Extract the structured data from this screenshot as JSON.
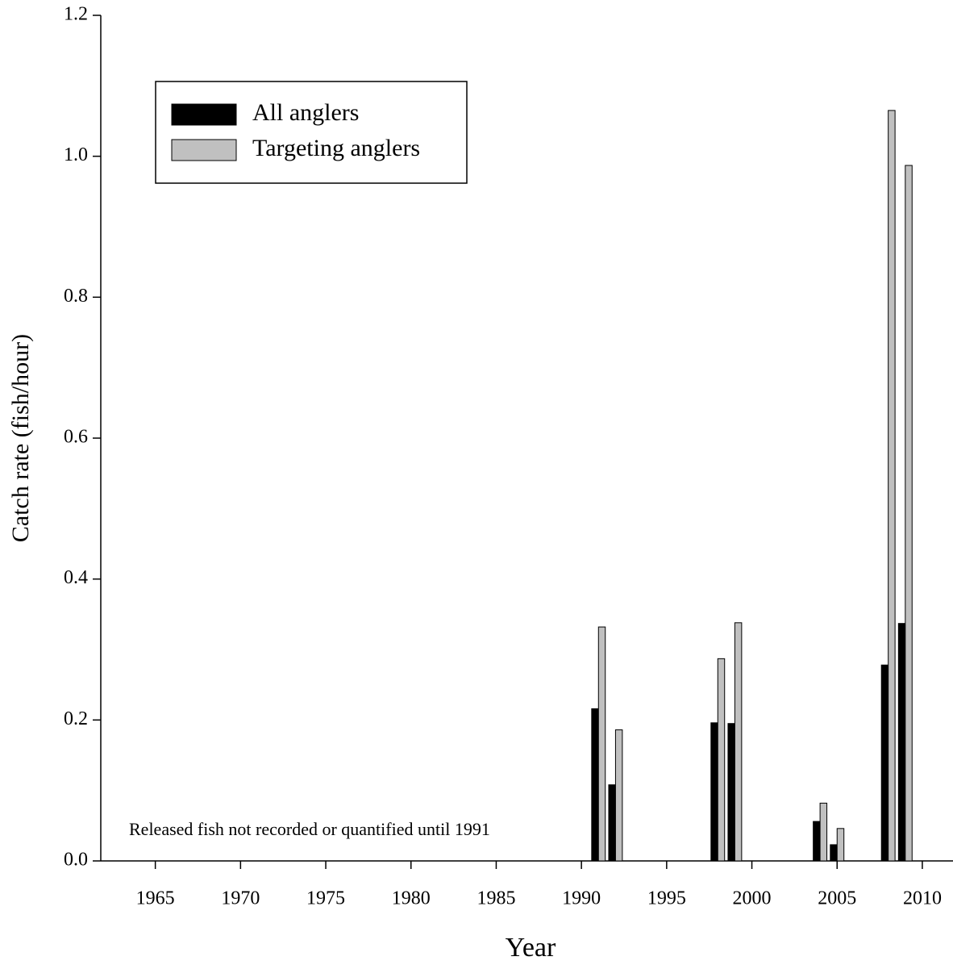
{
  "chart_data": {
    "type": "bar",
    "x_label": "Year",
    "y_label": "Catch rate (fish/hour)",
    "annotation": "Released fish not recorded or quantified until 1991",
    "x": [
      1991,
      1992,
      1998,
      1999,
      2004,
      2005,
      2008,
      2009
    ],
    "series": [
      {
        "name": "All anglers",
        "color": "#000000",
        "values": [
          0.216,
          0.108,
          0.196,
          0.195,
          0.056,
          0.023,
          0.278,
          0.337
        ]
      },
      {
        "name": "Targeting anglers",
        "color": "#c0c0c0",
        "values": [
          0.332,
          0.186,
          0.287,
          0.338,
          0.082,
          0.046,
          1.065,
          0.987
        ]
      }
    ],
    "xlim": [
      1961.8,
      2011.8
    ],
    "xticks": [
      1965,
      1970,
      1975,
      1980,
      1985,
      1990,
      1995,
      2000,
      2005,
      2010
    ],
    "ylim": [
      0,
      1.2
    ],
    "yticks": [
      {
        "value": 0,
        "label": "0.0"
      },
      {
        "value": 0.2,
        "label": "0.2"
      },
      {
        "value": 0.4,
        "label": "0.4"
      },
      {
        "value": 0.6,
        "label": "0.6"
      },
      {
        "value": 0.8,
        "label": "0.8"
      },
      {
        "value": 1.0,
        "label": "1.0"
      },
      {
        "value": 1.2,
        "label": "1.2"
      }
    ],
    "legend": "upper left"
  }
}
